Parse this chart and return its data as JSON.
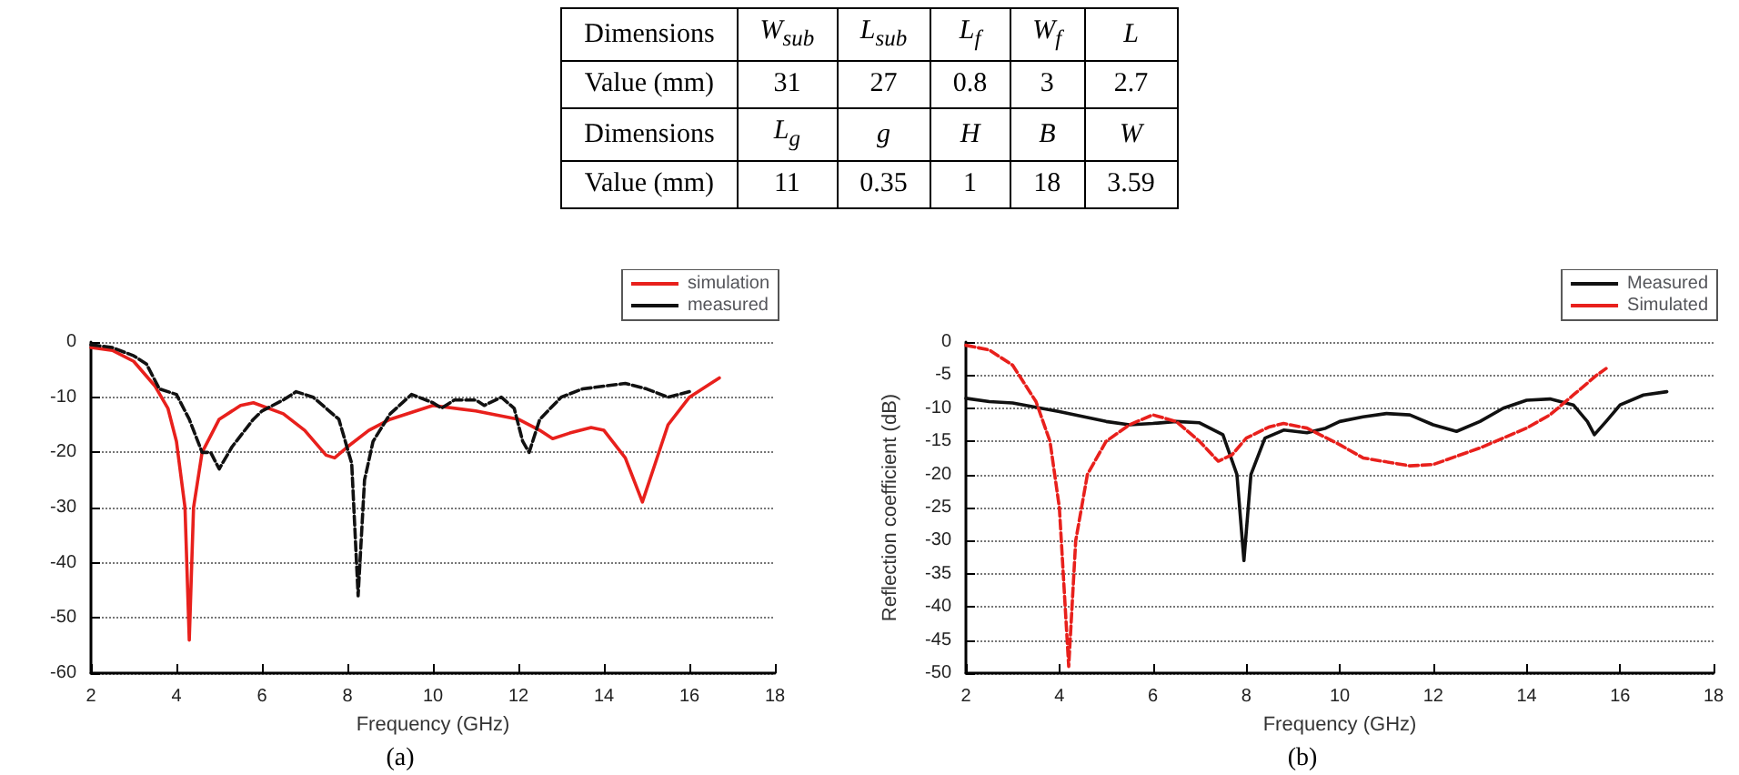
{
  "chart_data": [
    {
      "type": "other",
      "annotations": [
        "Dimensions",
        "W$_{sub}$",
        "L$_{sub}$",
        "L$_{f}$",
        "W$_{f}$",
        "L",
        "Value (mm)",
        "31",
        "27",
        "0.8",
        "3",
        "2.7",
        "Dimensions",
        "L$_{g}$",
        "g",
        "H",
        "B",
        "W",
        "Value (mm)",
        "11",
        "0.35",
        "1",
        "18",
        "3.59"
      ]
    },
    {
      "type": "line",
      "xlabel": "Frequency (GHz)",
      "xlim": [
        2,
        18
      ],
      "xticks": [
        2,
        4,
        6,
        8,
        10,
        12,
        14,
        16,
        18
      ],
      "ylim": [
        -60,
        0
      ],
      "yticks": [
        -60,
        -50,
        -40,
        -30,
        -20,
        -10,
        0
      ],
      "grid": "y",
      "legend": "top right",
      "marker": "none",
      "annotations": [
        "(a)"
      ],
      "series": [
        {
          "name": "simulation",
          "color": "#e8201c",
          "line_style": "solid",
          "x": [
            2,
            2.5,
            3,
            3.5,
            3.8,
            4,
            4.2,
            4.3,
            4.4,
            4.6,
            5,
            5.5,
            5.8,
            6.5,
            7,
            7.5,
            7.7,
            8,
            8.5,
            9,
            10,
            11,
            12,
            12.5,
            12.8,
            13.2,
            13.7,
            14,
            14.5,
            14.9,
            15.2,
            15.5,
            16,
            16.5,
            16.7
          ],
          "values": [
            -1,
            -1.5,
            -3.5,
            -8,
            -12,
            -18,
            -30,
            -54,
            -30,
            -20,
            -14,
            -11.5,
            -11,
            -13,
            -16,
            -20.5,
            -21,
            -19,
            -16,
            -14,
            -11.5,
            -12.5,
            -14,
            -16,
            -17.5,
            -16.5,
            -15.5,
            -16,
            -21,
            -29,
            -22,
            -15,
            -10,
            -7.5,
            -6.5
          ]
        },
        {
          "name": "measured",
          "color": "#111111",
          "line_style": "dashed",
          "x": [
            2,
            2.5,
            3,
            3.3,
            3.6,
            4,
            4.3,
            4.6,
            4.8,
            5,
            5.3,
            5.8,
            6,
            6.5,
            6.8,
            7.2,
            7.8,
            8.1,
            8.25,
            8.4,
            8.6,
            9,
            9.5,
            10,
            10.2,
            10.5,
            11,
            11.2,
            11.6,
            11.9,
            12.1,
            12.25,
            12.5,
            13,
            13.5,
            14,
            14.5,
            15,
            15.5,
            16
          ],
          "values": [
            -0.5,
            -1,
            -2.5,
            -4,
            -8.5,
            -9.5,
            -14,
            -20,
            -20,
            -23,
            -19,
            -14,
            -12.5,
            -10.5,
            -9,
            -10,
            -14,
            -22,
            -46,
            -25,
            -18,
            -13,
            -9.5,
            -11,
            -12,
            -10.5,
            -10.5,
            -11.5,
            -10,
            -12,
            -18,
            -20,
            -14,
            -10,
            -8.5,
            -8,
            -7.5,
            -8.5,
            -10,
            -9
          ]
        }
      ]
    },
    {
      "type": "line",
      "xlabel": "Frequency (GHz)",
      "ylabel": "Reflection coefficient (dB)",
      "xlim": [
        2,
        18
      ],
      "xticks": [
        2,
        4,
        6,
        8,
        10,
        12,
        14,
        16,
        18
      ],
      "ylim": [
        -50,
        0
      ],
      "yticks": [
        -50,
        -45,
        -40,
        -35,
        -30,
        -25,
        -20,
        -15,
        -10,
        -5,
        0
      ],
      "grid": "y",
      "legend": "top right",
      "marker": "none",
      "annotations": [
        "(b)"
      ],
      "series": [
        {
          "name": "Measured",
          "color": "#111111",
          "line_style": "solid",
          "x": [
            2,
            2.5,
            3,
            4,
            5,
            5.5,
            6,
            6.5,
            7,
            7.5,
            7.8,
            7.95,
            8.1,
            8.4,
            8.8,
            9.3,
            9.7,
            10,
            10.5,
            11,
            11.5,
            12,
            12.5,
            13,
            13.5,
            14,
            14.5,
            15,
            15.3,
            15.45,
            15.7,
            16,
            16.5,
            17
          ],
          "values": [
            -8.5,
            -9,
            -9.2,
            -10.5,
            -12,
            -12.5,
            -12.3,
            -12,
            -12.2,
            -14,
            -20,
            -33,
            -20,
            -14.5,
            -13.3,
            -13.7,
            -13,
            -12,
            -11.3,
            -10.8,
            -11,
            -12.5,
            -13.5,
            -12,
            -10,
            -8.8,
            -8.6,
            -9.5,
            -12,
            -14,
            -12,
            -9.5,
            -8,
            -7.5
          ]
        },
        {
          "name": "Simulated",
          "color": "#e8201c",
          "line_style": "dashed",
          "x": [
            2,
            2.5,
            3,
            3.5,
            3.8,
            4,
            4.2,
            4.35,
            4.6,
            5,
            5.5,
            6,
            6.5,
            7,
            7.4,
            7.7,
            8,
            8.5,
            8.8,
            9.3,
            10,
            10.5,
            11.5,
            12,
            13,
            14,
            14.5,
            15,
            15.5,
            15.7
          ],
          "values": [
            -0.5,
            -1.2,
            -3.5,
            -9,
            -15,
            -25,
            -49,
            -30,
            -20,
            -15,
            -12.5,
            -11,
            -12,
            -15,
            -18,
            -17,
            -14.5,
            -12.8,
            -12.3,
            -13,
            -15.5,
            -17.5,
            -18.7,
            -18.5,
            -16,
            -13,
            -11,
            -8,
            -5,
            -4
          ]
        }
      ]
    }
  ]
}
